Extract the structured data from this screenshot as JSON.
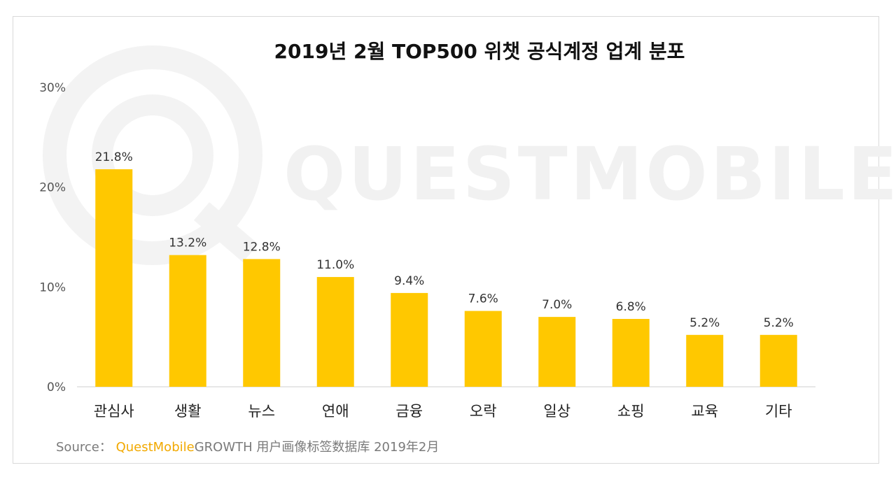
{
  "chart_data": {
    "type": "bar",
    "title": "2019년 2월 TOP500 위챗 공식계정 업계 분포",
    "categories": [
      "관심사",
      "생활",
      "뉴스",
      "연애",
      "금융",
      "오락",
      "일상",
      "쇼핑",
      "교육",
      "기타"
    ],
    "values": [
      21.8,
      13.2,
      12.8,
      11.0,
      9.4,
      7.6,
      7.0,
      6.8,
      5.2,
      5.2
    ],
    "value_labels": [
      "21.8%",
      "13.2%",
      "12.8%",
      "11.0%",
      "9.4%",
      "7.6%",
      "7.0%",
      "6.8%",
      "5.2%",
      "5.2%"
    ],
    "ylim": [
      0,
      30
    ],
    "yticks": [
      0,
      10,
      20,
      30
    ],
    "ytick_labels": [
      "0%",
      "10%",
      "20%",
      "30%"
    ],
    "bar_color": "#ffc800",
    "grid": false,
    "xlabel": "",
    "ylabel": ""
  },
  "watermark": "QUESTMOBILE",
  "source": {
    "prefix": "Source：",
    "brand": "QuestMobile",
    "rest": "GROWTH 用户画像标签数据库  2019年2月"
  }
}
